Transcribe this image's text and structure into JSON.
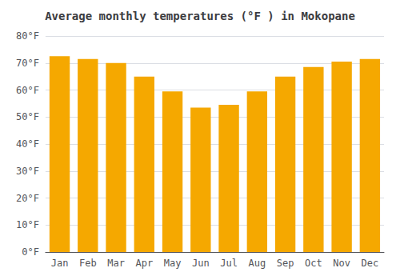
{
  "chart_data": {
    "type": "bar",
    "title": "Average monthly temperatures (°F ) in Mokopane",
    "categories": [
      "Jan",
      "Feb",
      "Mar",
      "Apr",
      "May",
      "Jun",
      "Jul",
      "Aug",
      "Sep",
      "Oct",
      "Nov",
      "Dec"
    ],
    "values": [
      72.5,
      71.5,
      70.0,
      65.0,
      59.5,
      53.5,
      54.5,
      59.5,
      65.0,
      68.5,
      70.5,
      71.5
    ],
    "color": "#F5A800",
    "ylim": [
      0,
      80
    ],
    "yticks": [
      {
        "value": 0,
        "label": "0°F"
      },
      {
        "value": 10,
        "label": "10°F"
      },
      {
        "value": 20,
        "label": "20°F"
      },
      {
        "value": 30,
        "label": "30°F"
      },
      {
        "value": 40,
        "label": "40°F"
      },
      {
        "value": 50,
        "label": "50°F"
      },
      {
        "value": 60,
        "label": "60°F"
      },
      {
        "value": 70,
        "label": "70°F"
      },
      {
        "value": 80,
        "label": "80°F"
      }
    ],
    "grid": true
  }
}
